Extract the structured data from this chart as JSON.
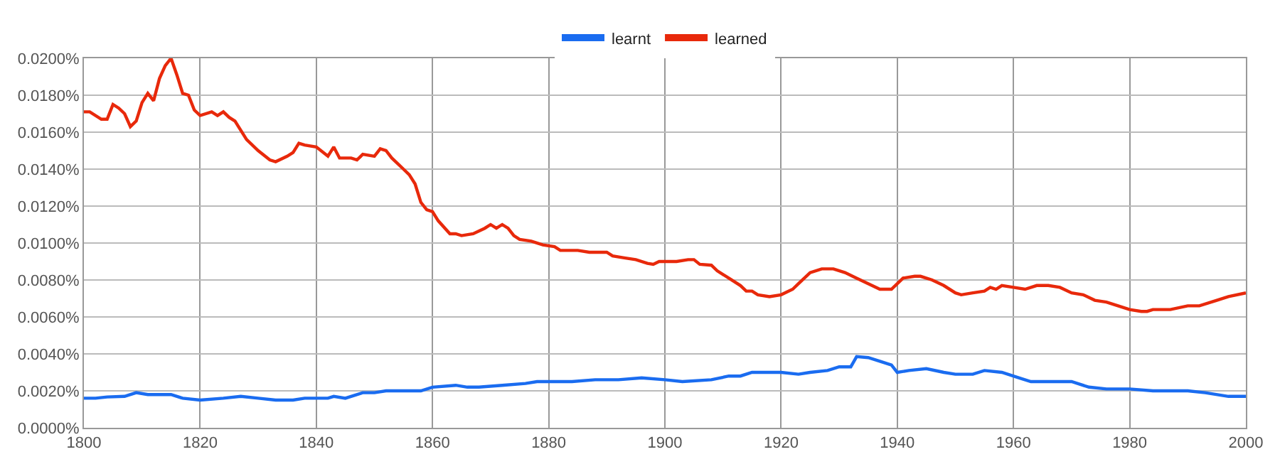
{
  "chart_data": {
    "type": "line",
    "xlim": [
      1800,
      2000
    ],
    "xticks": [
      1800,
      1820,
      1840,
      1860,
      1880,
      1900,
      1920,
      1940,
      1960,
      1980,
      2000
    ],
    "ylim": [
      0,
      0.02
    ],
    "yticks": [
      {
        "value": 0,
        "label": "0.0000%"
      },
      {
        "value": 0.002,
        "label": "0.0020%"
      },
      {
        "value": 0.004,
        "label": "0.0040%"
      },
      {
        "value": 0.006,
        "label": "0.0060%"
      },
      {
        "value": 0.008,
        "label": "0.0080%"
      },
      {
        "value": 0.01,
        "label": "0.0100%"
      },
      {
        "value": 0.012,
        "label": "0.0120%"
      },
      {
        "value": 0.014,
        "label": "0.0140%"
      },
      {
        "value": 0.016,
        "label": "0.0160%"
      },
      {
        "value": 0.018,
        "label": "0.0180%"
      },
      {
        "value": 0.02,
        "label": "0.0200%"
      }
    ],
    "grid": true,
    "legend": "top",
    "marker": "none",
    "line_style": "solid",
    "series": [
      {
        "name": "learnt",
        "color": "#1a6cf0",
        "x": [
          1800,
          1802,
          1804,
          1807,
          1809,
          1811,
          1815,
          1817,
          1820,
          1824,
          1827,
          1830,
          1833,
          1836,
          1838,
          1842,
          1843,
          1845,
          1848,
          1850,
          1852,
          1856,
          1858,
          1860,
          1864,
          1866,
          1868,
          1872,
          1876,
          1878,
          1884,
          1888,
          1892,
          1896,
          1900,
          1903,
          1908,
          1911,
          1913,
          1915,
          1918,
          1920,
          1923,
          1925,
          1928,
          1930,
          1932,
          1933,
          1935,
          1937,
          1939,
          1940,
          1942,
          1945,
          1948,
          1950,
          1953,
          1955,
          1958,
          1961,
          1963,
          1966,
          1970,
          1973,
          1976,
          1980,
          1984,
          1990,
          1993,
          1997,
          2000
        ],
        "values": [
          0.0016,
          0.0016,
          0.00167,
          0.0017,
          0.0019,
          0.0018,
          0.0018,
          0.0016,
          0.0015,
          0.0016,
          0.0017,
          0.0016,
          0.0015,
          0.0015,
          0.0016,
          0.0016,
          0.0017,
          0.0016,
          0.0019,
          0.0019,
          0.002,
          0.002,
          0.002,
          0.0022,
          0.0023,
          0.0022,
          0.0022,
          0.0023,
          0.0024,
          0.0025,
          0.0025,
          0.0026,
          0.0026,
          0.0027,
          0.0026,
          0.0025,
          0.0026,
          0.0028,
          0.0028,
          0.003,
          0.003,
          0.003,
          0.0029,
          0.003,
          0.0031,
          0.0033,
          0.0033,
          0.00385,
          0.0038,
          0.0036,
          0.0034,
          0.003,
          0.0031,
          0.0032,
          0.003,
          0.0029,
          0.0029,
          0.0031,
          0.003,
          0.0027,
          0.0025,
          0.0025,
          0.0025,
          0.0022,
          0.0021,
          0.0021,
          0.002,
          0.002,
          0.0019,
          0.0017,
          0.0017
        ]
      },
      {
        "name": "learned",
        "color": "#e8290b",
        "x": [
          1800,
          1801,
          1803,
          1804,
          1805,
          1806,
          1807,
          1808,
          1809,
          1810,
          1811,
          1812,
          1813,
          1814,
          1815,
          1816,
          1817,
          1818,
          1819,
          1820,
          1822,
          1823,
          1824,
          1825,
          1826,
          1828,
          1830,
          1832,
          1833,
          1835,
          1836,
          1837,
          1838,
          1840,
          1842,
          1843,
          1844,
          1846,
          1847,
          1848,
          1850,
          1851,
          1852,
          1853,
          1855,
          1856,
          1857,
          1858,
          1859,
          1860,
          1861,
          1863,
          1864,
          1865,
          1867,
          1869,
          1870,
          1871,
          1872,
          1873,
          1874,
          1875,
          1877,
          1879,
          1881,
          1882,
          1885,
          1887,
          1890,
          1891,
          1893,
          1895,
          1897,
          1898,
          1899,
          1902,
          1904,
          1905,
          1906,
          1908,
          1909,
          1911,
          1913,
          1914,
          1915,
          1916,
          1918,
          1920,
          1922,
          1923,
          1925,
          1927,
          1929,
          1931,
          1933,
          1935,
          1937,
          1939,
          1941,
          1943,
          1944,
          1946,
          1948,
          1950,
          1951,
          1953,
          1955,
          1956,
          1957,
          1958,
          1960,
          1962,
          1964,
          1966,
          1968,
          1970,
          1972,
          1974,
          1976,
          1978,
          1980,
          1982,
          1983,
          1984,
          1987,
          1990,
          1992,
          1995,
          1997,
          2000
        ],
        "values": [
          0.0171,
          0.0171,
          0.0167,
          0.0167,
          0.0175,
          0.0173,
          0.017,
          0.0163,
          0.0166,
          0.0176,
          0.0181,
          0.0177,
          0.0189,
          0.0196,
          0.02,
          0.0191,
          0.0181,
          0.018,
          0.0172,
          0.0169,
          0.0171,
          0.0169,
          0.0171,
          0.0168,
          0.0166,
          0.0156,
          0.015,
          0.0145,
          0.0144,
          0.0147,
          0.0149,
          0.0154,
          0.0153,
          0.0152,
          0.0147,
          0.0152,
          0.0146,
          0.0146,
          0.0145,
          0.0148,
          0.0147,
          0.0151,
          0.015,
          0.0146,
          0.014,
          0.0137,
          0.0132,
          0.0122,
          0.0118,
          0.0117,
          0.0112,
          0.0105,
          0.0105,
          0.0104,
          0.0105,
          0.0108,
          0.011,
          0.0108,
          0.011,
          0.0108,
          0.0104,
          0.0102,
          0.0101,
          0.0099,
          0.0098,
          0.0096,
          0.0096,
          0.0095,
          0.0095,
          0.0093,
          0.0092,
          0.0091,
          0.0089,
          0.00885,
          0.009,
          0.009,
          0.0091,
          0.0091,
          0.00885,
          0.0088,
          0.0085,
          0.0081,
          0.0077,
          0.0074,
          0.0074,
          0.0072,
          0.0071,
          0.0072,
          0.0075,
          0.0078,
          0.0084,
          0.0086,
          0.0086,
          0.0084,
          0.0081,
          0.0078,
          0.0075,
          0.0075,
          0.0081,
          0.0082,
          0.0082,
          0.008,
          0.0077,
          0.0073,
          0.0072,
          0.0073,
          0.0074,
          0.0076,
          0.0075,
          0.0077,
          0.0076,
          0.0075,
          0.0077,
          0.0077,
          0.0076,
          0.0073,
          0.0072,
          0.0069,
          0.0068,
          0.0066,
          0.0064,
          0.0063,
          0.0063,
          0.0064,
          0.0064,
          0.0066,
          0.0066,
          0.0069,
          0.0071,
          0.0073
        ]
      }
    ]
  }
}
